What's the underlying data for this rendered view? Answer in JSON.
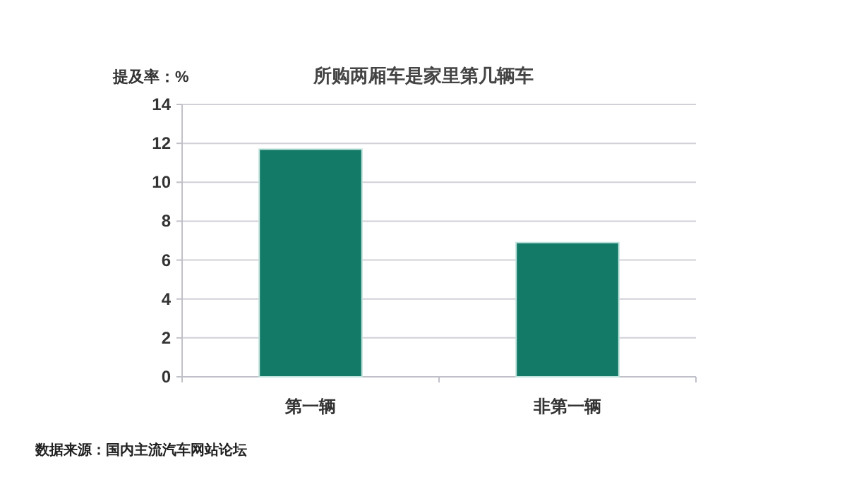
{
  "chart_data": {
    "type": "bar",
    "title": "所购两厢车是家里第几辆车",
    "ylabel": "提及率：%",
    "categories": [
      "第一辆",
      "非第一辆"
    ],
    "values": [
      11.7,
      6.9
    ],
    "color": "#137a68",
    "ylim": [
      0,
      14
    ],
    "yticks": [
      0,
      2,
      4,
      6,
      8,
      10,
      12,
      14
    ],
    "grid": "y",
    "annotations": [
      "数据来源：国内主流汽车网站论坛"
    ]
  }
}
